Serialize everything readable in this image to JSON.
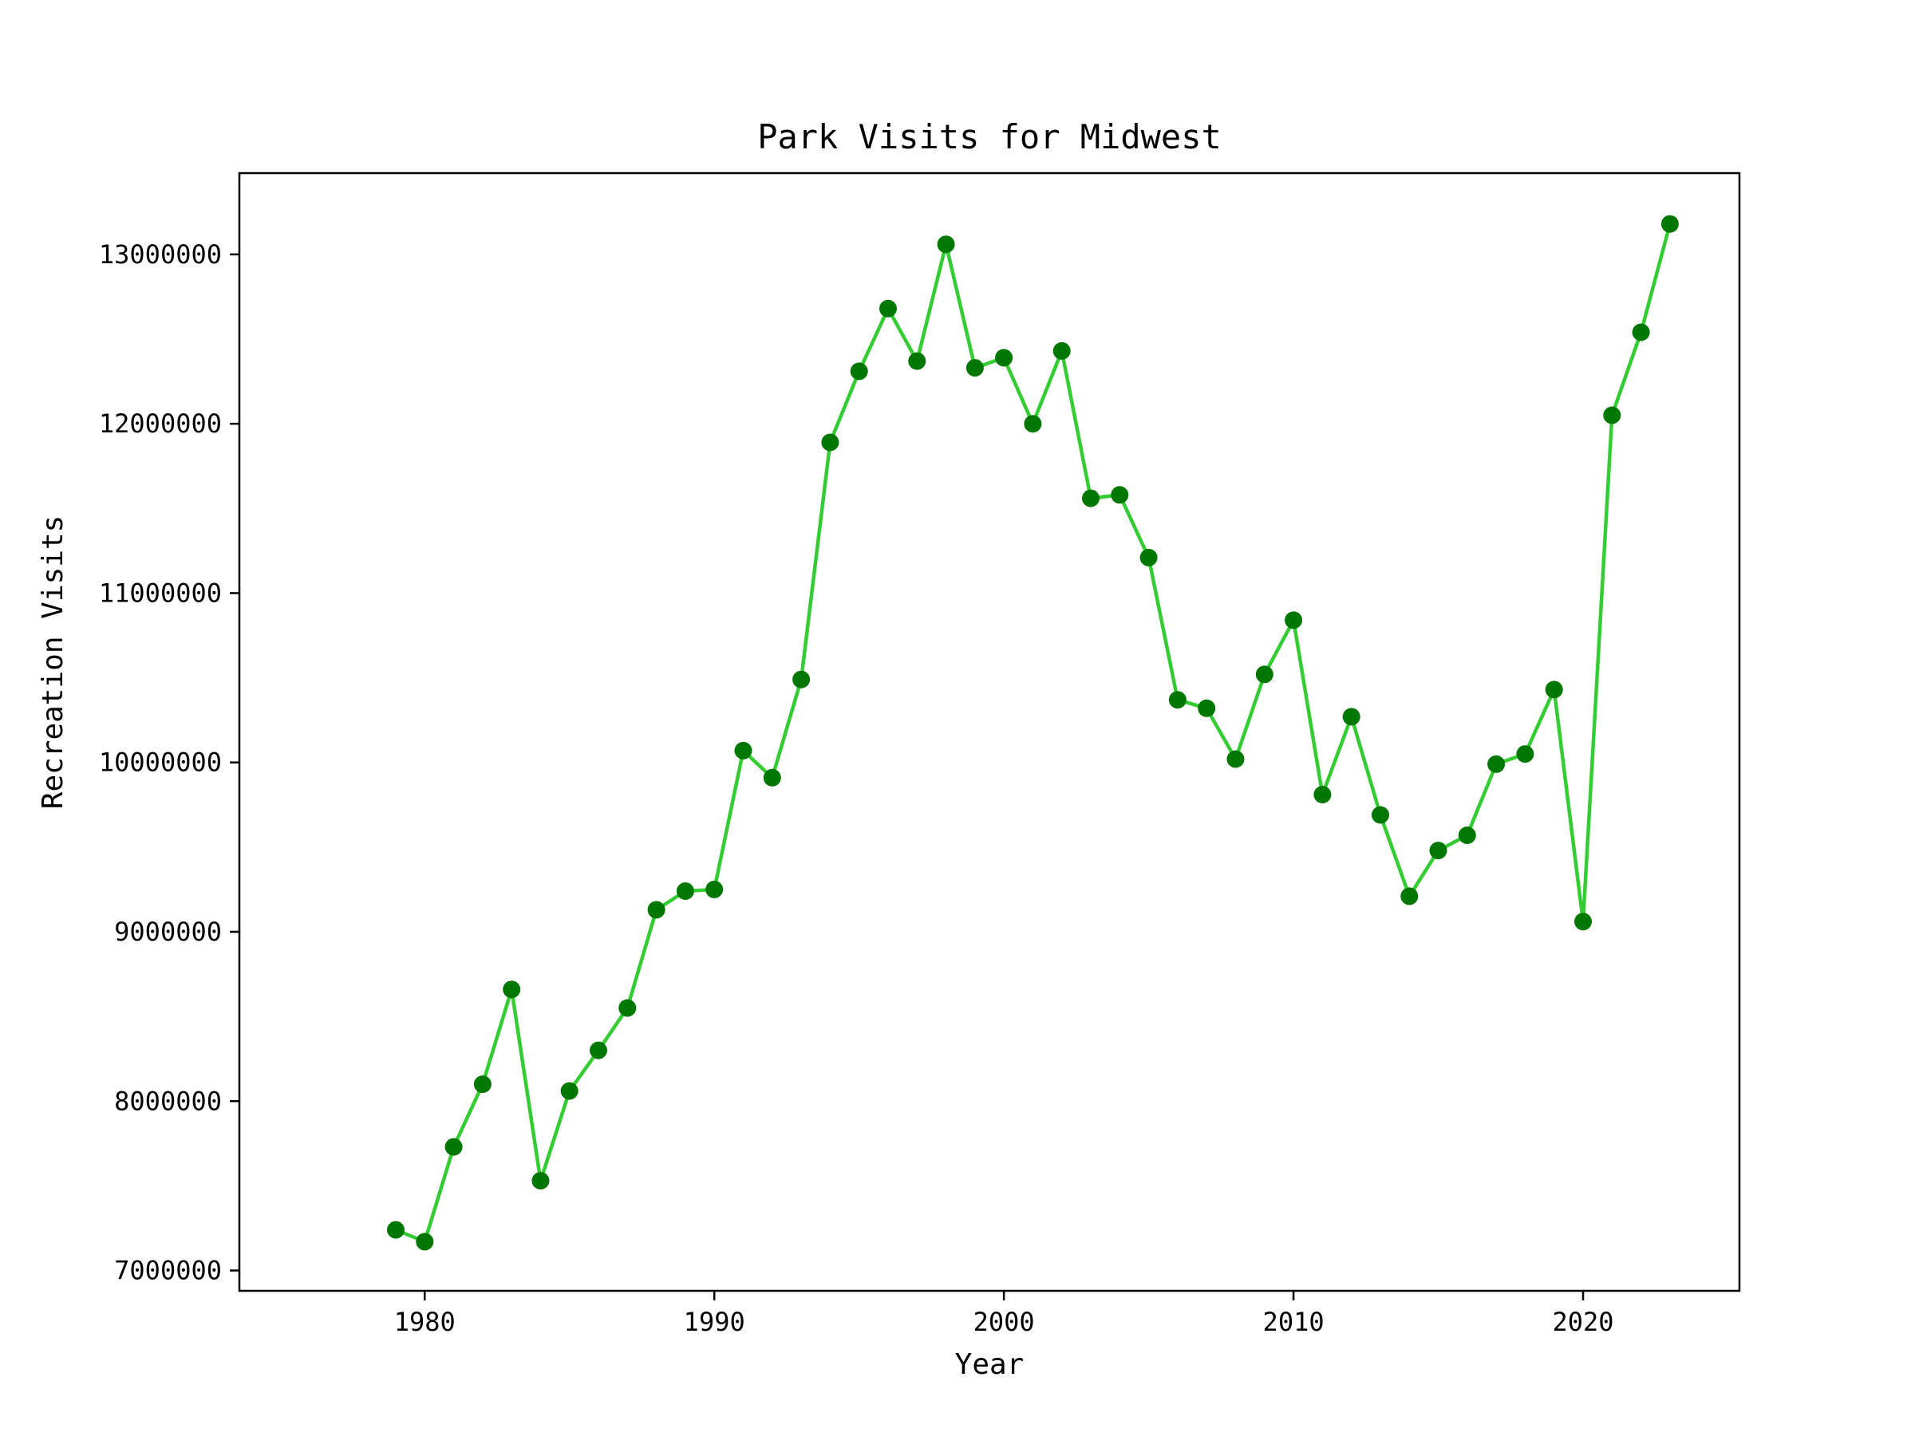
{
  "chart_data": {
    "type": "line",
    "title": "Park Visits for Midwest",
    "xlabel": "Year",
    "ylabel": "Recreation Visits",
    "xlim": [
      1973.6,
      2025.4
    ],
    "ylim": [
      6880000,
      13480000
    ],
    "xticks": [
      1980,
      1990,
      2000,
      2010,
      2020
    ],
    "xtick_labels": [
      "1980",
      "1990",
      "2000",
      "2010",
      "2020"
    ],
    "yticks": [
      7000000,
      8000000,
      9000000,
      10000000,
      11000000,
      12000000,
      13000000
    ],
    "ytick_labels": [
      "7000000",
      "8000000",
      "9000000",
      "10000000",
      "11000000",
      "12000000",
      "13000000"
    ],
    "grid": false,
    "colors": {
      "line": "#33cc33",
      "marker": "#007700",
      "axes": "#000000"
    },
    "series": [
      {
        "x": [
          1979,
          1980,
          1981,
          1982,
          1983,
          1984,
          1985,
          1986,
          1987,
          1988,
          1989,
          1990,
          1991,
          1992,
          1993,
          1994,
          1995,
          1996,
          1997,
          1998,
          1999,
          2000,
          2001,
          2002,
          2003,
          2004,
          2005,
          2006,
          2007,
          2008,
          2009,
          2010,
          2011,
          2012,
          2013,
          2014,
          2015,
          2016,
          2017,
          2018,
          2019,
          2020,
          2021,
          2022,
          2023
        ],
        "y": [
          7240000,
          7170000,
          7730000,
          8100000,
          8660000,
          7530000,
          8060000,
          8300000,
          8550000,
          9130000,
          9240000,
          9250000,
          10070000,
          9910000,
          10490000,
          11890000,
          12310000,
          12680000,
          12370000,
          13060000,
          12330000,
          12390000,
          12000000,
          12430000,
          11560000,
          11580000,
          11210000,
          10370000,
          10320000,
          10020000,
          10520000,
          10840000,
          9810000,
          10270000,
          9690000,
          9210000,
          9480000,
          9570000,
          9990000,
          10050000,
          10430000,
          9060000,
          12050000,
          12540000,
          13180000
        ]
      }
    ]
  }
}
